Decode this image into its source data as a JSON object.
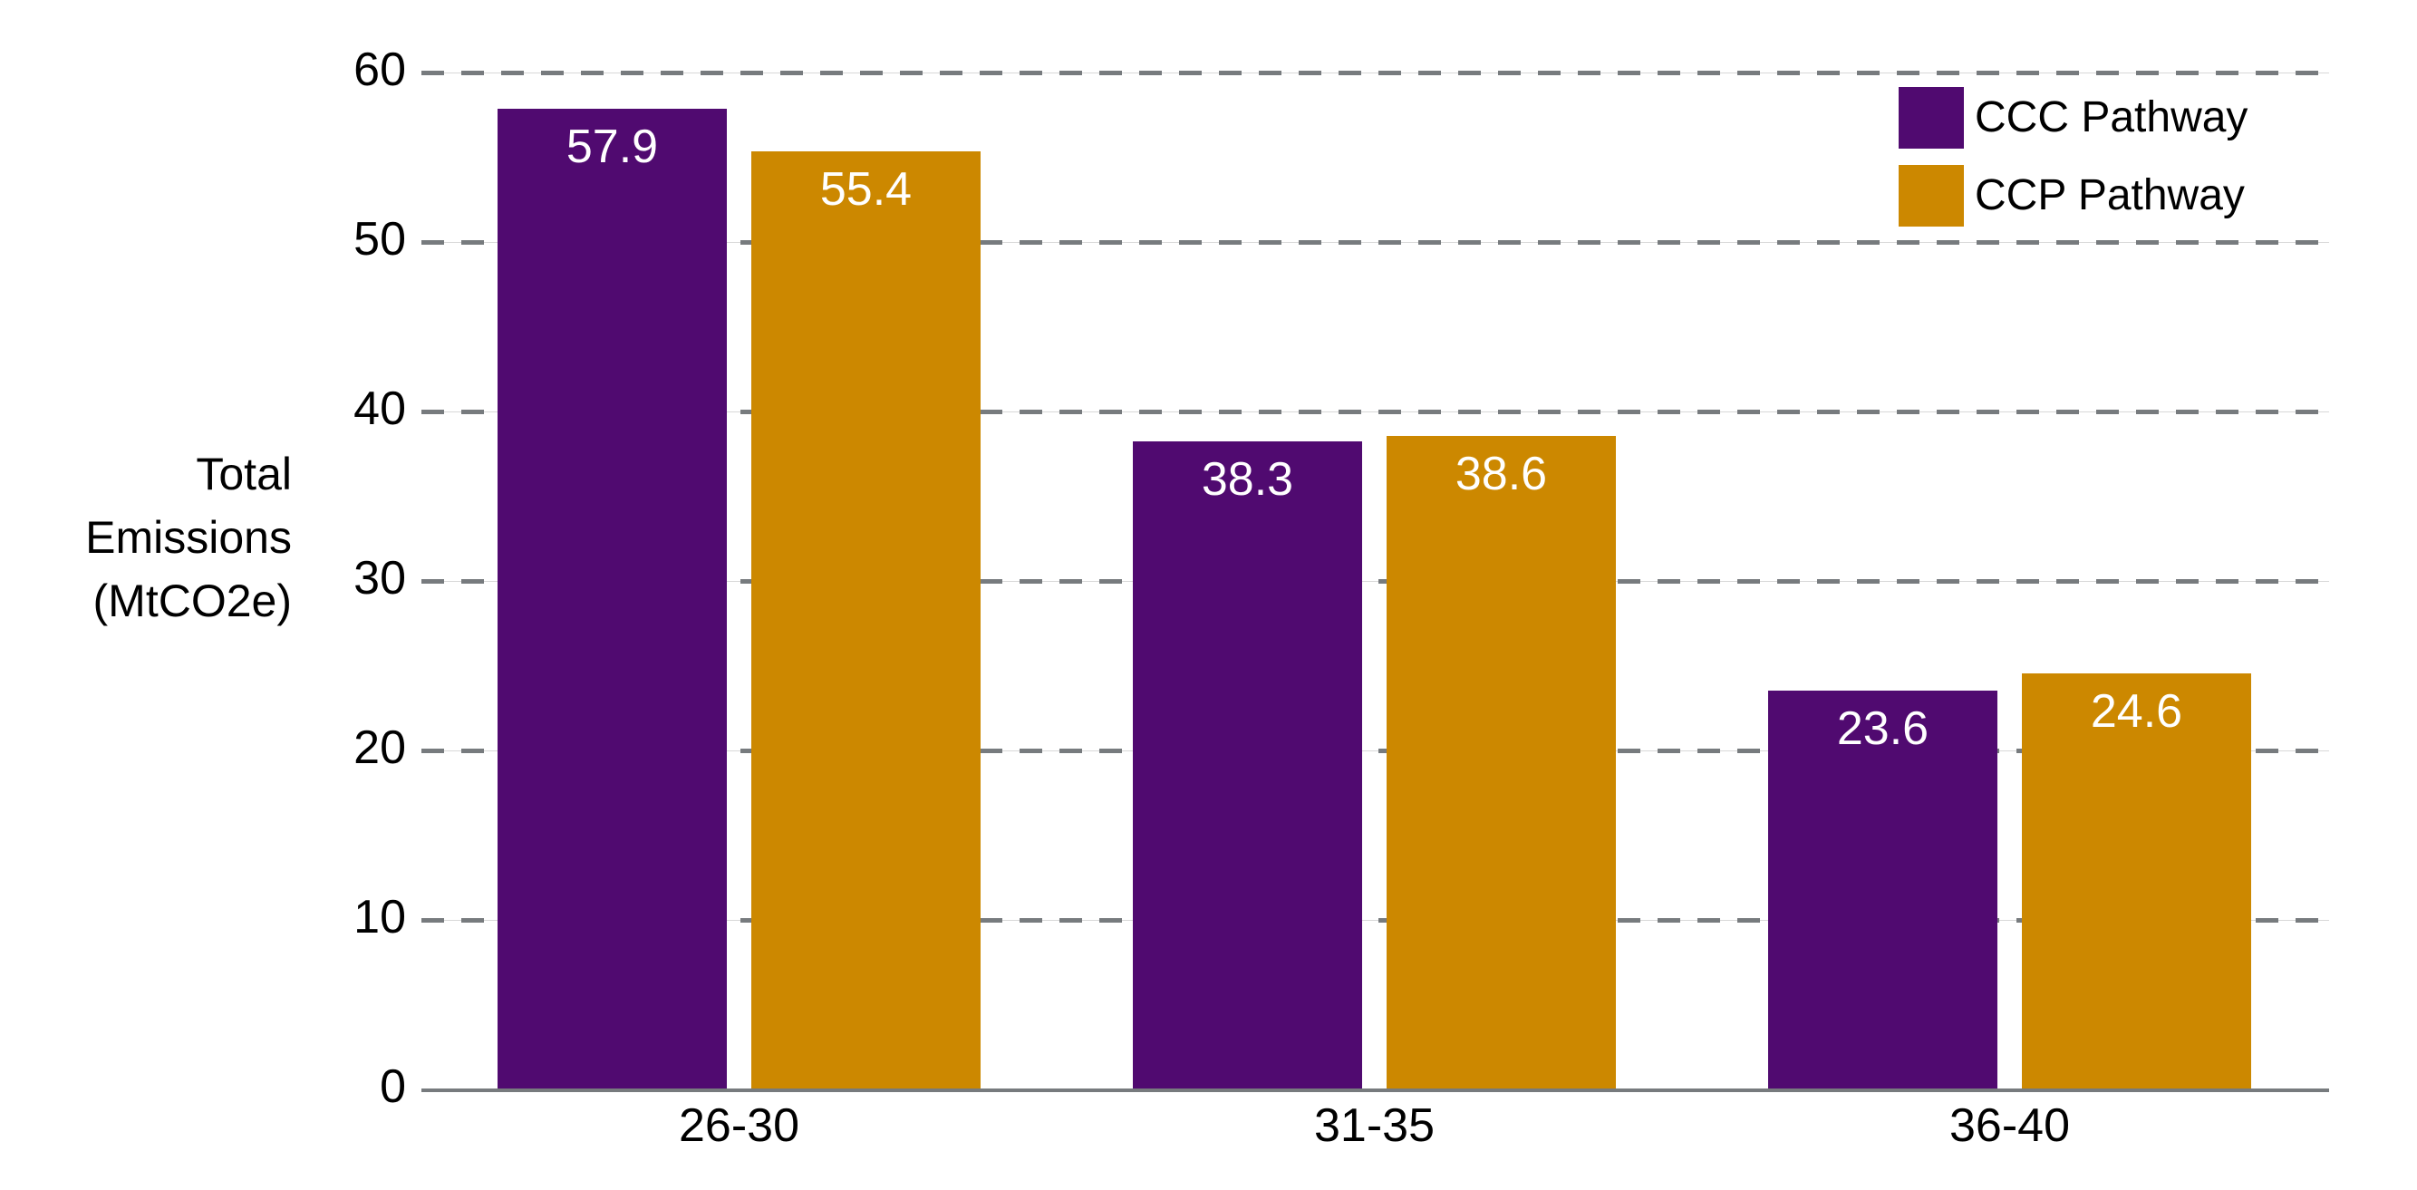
{
  "chart_data": {
    "type": "bar",
    "title": "",
    "xlabel": "",
    "ylabel": "Total\nEmissions\n(MtCO2e)",
    "ylim": [
      0,
      60
    ],
    "yticks": [
      "0",
      "10",
      "20",
      "30",
      "40",
      "50",
      "60"
    ],
    "grid": true,
    "legend_position": "top-right",
    "categories": [
      "26-30",
      "31-35",
      "36-40"
    ],
    "series": [
      {
        "name": "CCC Pathway",
        "color": "#500a70",
        "values": [
          57.9,
          38.3,
          23.6
        ],
        "labels": [
          "57.9",
          "38.3",
          "23.6"
        ]
      },
      {
        "name": "CCP Pathway",
        "color": "#cc8800",
        "values": [
          55.4,
          38.6,
          24.6
        ],
        "labels": [
          "55.4",
          "38.6",
          "24.6"
        ]
      }
    ]
  }
}
